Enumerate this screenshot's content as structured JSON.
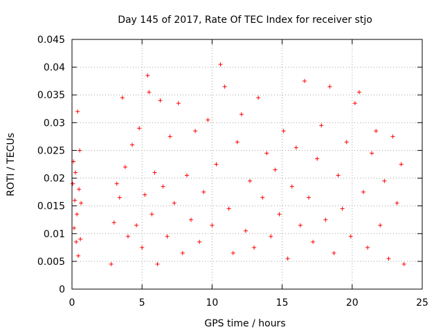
{
  "chart_data": {
    "type": "scatter",
    "title": "Day 145 of 2017, Rate Of TEC Index for receiver stjo",
    "xlabel": "GPS time / hours",
    "ylabel": "ROTI / TECUs",
    "xlim": [
      0,
      25
    ],
    "ylim": [
      0,
      0.045
    ],
    "xticks": [
      0,
      5,
      10,
      15,
      20,
      25
    ],
    "xtick_labels": [
      "0",
      "5",
      "10",
      "15",
      "20",
      "25"
    ],
    "yticks": [
      0,
      0.005,
      0.01,
      0.015,
      0.02,
      0.025,
      0.03,
      0.035,
      0.04,
      0.045
    ],
    "ytick_labels": [
      "0",
      "0.005",
      "0.01",
      "0.015",
      "0.02",
      "0.025",
      "0.03",
      "0.035",
      "0.04",
      "0.045"
    ],
    "grid": true,
    "marker": "plus",
    "color": "#ff0000",
    "series": [
      {
        "points": [
          [
            0.05,
            0.019
          ],
          [
            0.1,
            0.023
          ],
          [
            0.15,
            0.011
          ],
          [
            0.2,
            0.016
          ],
          [
            0.25,
            0.021
          ],
          [
            0.3,
            0.0085
          ],
          [
            0.35,
            0.0135
          ],
          [
            0.4,
            0.032
          ],
          [
            0.45,
            0.006
          ],
          [
            0.5,
            0.018
          ],
          [
            0.55,
            0.025
          ],
          [
            0.6,
            0.009
          ],
          [
            0.65,
            0.0155
          ],
          [
            2.8,
            0.0045
          ],
          [
            3.0,
            0.012
          ],
          [
            3.2,
            0.019
          ],
          [
            3.4,
            0.0165
          ],
          [
            3.6,
            0.0345
          ],
          [
            3.8,
            0.022
          ],
          [
            4.0,
            0.0095
          ],
          [
            4.3,
            0.026
          ],
          [
            4.6,
            0.0115
          ],
          [
            4.8,
            0.029
          ],
          [
            5.0,
            0.0075
          ],
          [
            5.2,
            0.017
          ],
          [
            5.4,
            0.0385
          ],
          [
            5.5,
            0.0355
          ],
          [
            5.7,
            0.0135
          ],
          [
            5.9,
            0.021
          ],
          [
            6.1,
            0.0045
          ],
          [
            6.3,
            0.034
          ],
          [
            6.5,
            0.0185
          ],
          [
            6.8,
            0.0095
          ],
          [
            7.0,
            0.0275
          ],
          [
            7.3,
            0.0155
          ],
          [
            7.6,
            0.0335
          ],
          [
            7.9,
            0.0065
          ],
          [
            8.2,
            0.0205
          ],
          [
            8.5,
            0.0125
          ],
          [
            8.8,
            0.0285
          ],
          [
            9.1,
            0.0085
          ],
          [
            9.4,
            0.0175
          ],
          [
            9.7,
            0.0305
          ],
          [
            10.0,
            0.0115
          ],
          [
            10.3,
            0.0225
          ],
          [
            10.6,
            0.0405
          ],
          [
            10.9,
            0.0365
          ],
          [
            11.2,
            0.0145
          ],
          [
            11.5,
            0.0065
          ],
          [
            11.8,
            0.0265
          ],
          [
            12.1,
            0.0315
          ],
          [
            12.4,
            0.0105
          ],
          [
            12.7,
            0.0195
          ],
          [
            13.0,
            0.0075
          ],
          [
            13.3,
            0.0345
          ],
          [
            13.6,
            0.0165
          ],
          [
            13.9,
            0.0245
          ],
          [
            14.2,
            0.0095
          ],
          [
            14.5,
            0.0215
          ],
          [
            14.8,
            0.0135
          ],
          [
            15.1,
            0.0285
          ],
          [
            15.4,
            0.0055
          ],
          [
            15.7,
            0.0185
          ],
          [
            16.0,
            0.0255
          ],
          [
            16.3,
            0.0115
          ],
          [
            16.6,
            0.0375
          ],
          [
            16.9,
            0.0165
          ],
          [
            17.2,
            0.0085
          ],
          [
            17.5,
            0.0235
          ],
          [
            17.8,
            0.0295
          ],
          [
            18.1,
            0.0125
          ],
          [
            18.4,
            0.0365
          ],
          [
            18.7,
            0.0065
          ],
          [
            19.0,
            0.0205
          ],
          [
            19.3,
            0.0145
          ],
          [
            19.6,
            0.0265
          ],
          [
            19.9,
            0.0095
          ],
          [
            20.2,
            0.0335
          ],
          [
            20.5,
            0.0355
          ],
          [
            20.8,
            0.0175
          ],
          [
            21.1,
            0.0075
          ],
          [
            21.4,
            0.0245
          ],
          [
            21.7,
            0.0285
          ],
          [
            22.0,
            0.0115
          ],
          [
            22.3,
            0.0195
          ],
          [
            22.6,
            0.0055
          ],
          [
            22.9,
            0.0275
          ],
          [
            23.2,
            0.0155
          ],
          [
            23.5,
            0.0225
          ],
          [
            23.7,
            0.0045
          ]
        ]
      }
    ]
  }
}
